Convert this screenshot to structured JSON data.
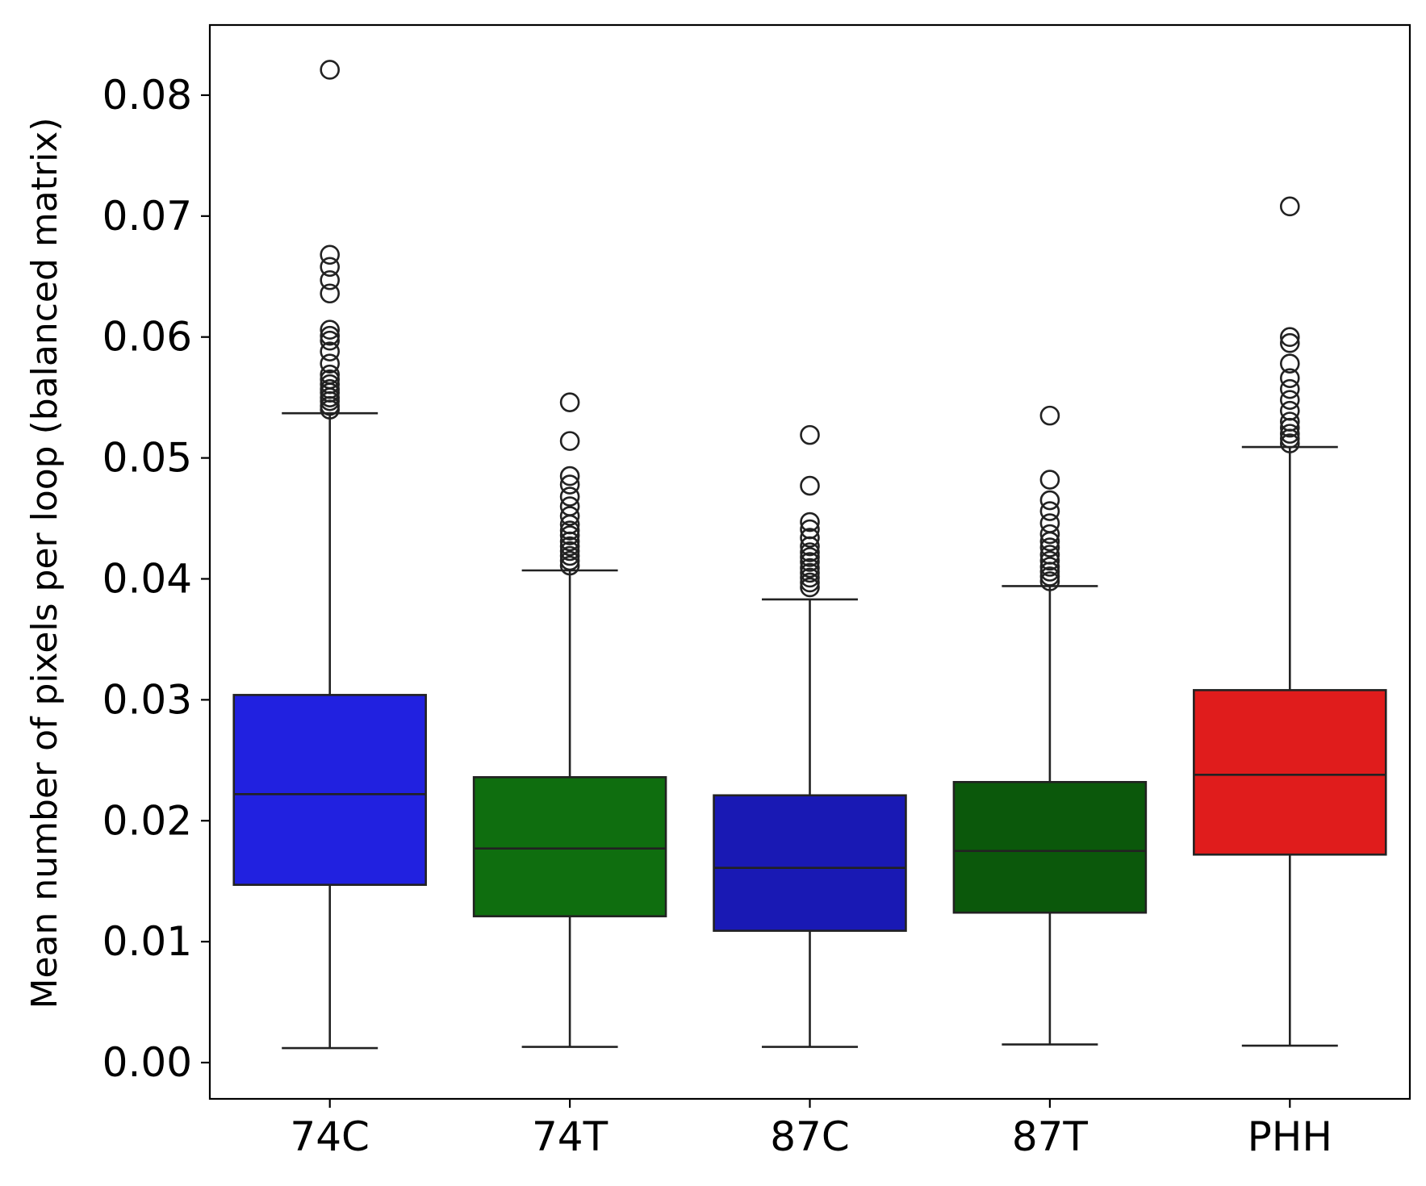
{
  "chart_data": {
    "type": "box",
    "title": "",
    "xlabel": "",
    "ylabel": "Mean number of pixels per loop (balanced matrix)",
    "ylim": [
      -0.003,
      0.0858
    ],
    "yticks": [
      "0.00",
      "0.01",
      "0.02",
      "0.03",
      "0.04",
      "0.05",
      "0.06",
      "0.07",
      "0.08"
    ],
    "ytick_values": [
      0.0,
      0.01,
      0.02,
      0.03,
      0.04,
      0.05,
      0.06,
      0.07,
      0.08
    ],
    "grid": false,
    "categories": [
      "74C",
      "74T",
      "87C",
      "87T",
      "PHH"
    ],
    "boxes": [
      {
        "category": "74C",
        "color": "#2121e0",
        "whisker_low": 0.0012,
        "q1": 0.0147,
        "median": 0.0222,
        "q3": 0.0304,
        "whisker_high": 0.0537,
        "outliers": [
          0.054,
          0.0543,
          0.0547,
          0.055,
          0.0554,
          0.0557,
          0.0561,
          0.0565,
          0.0569,
          0.0578,
          0.0588,
          0.0597,
          0.0601,
          0.0606,
          0.0636,
          0.0647,
          0.0658,
          0.0668,
          0.0821
        ]
      },
      {
        "category": "74T",
        "color": "#0f6e0f",
        "whisker_low": 0.0013,
        "q1": 0.0121,
        "median": 0.0177,
        "q3": 0.0236,
        "whisker_high": 0.0407,
        "outliers": [
          0.0411,
          0.0415,
          0.0419,
          0.0423,
          0.0427,
          0.0431,
          0.0436,
          0.044,
          0.0445,
          0.0452,
          0.046,
          0.0468,
          0.0478,
          0.0485,
          0.0514,
          0.0546
        ]
      },
      {
        "category": "87C",
        "color": "#1919b4",
        "whisker_low": 0.0013,
        "q1": 0.0109,
        "median": 0.0161,
        "q3": 0.0221,
        "whisker_high": 0.0383,
        "outliers": [
          0.0393,
          0.0397,
          0.0401,
          0.0405,
          0.0409,
          0.0414,
          0.0418,
          0.0422,
          0.0427,
          0.0434,
          0.0441,
          0.0447,
          0.0477,
          0.0519
        ]
      },
      {
        "category": "87T",
        "color": "#0b580b",
        "whisker_low": 0.0015,
        "q1": 0.0124,
        "median": 0.0175,
        "q3": 0.0232,
        "whisker_high": 0.0394,
        "outliers": [
          0.0398,
          0.0402,
          0.0406,
          0.041,
          0.0415,
          0.042,
          0.0426,
          0.0431,
          0.0437,
          0.0446,
          0.0456,
          0.0465,
          0.0482,
          0.0535
        ]
      },
      {
        "category": "PHH",
        "color": "#e01c1c",
        "whisker_low": 0.0014,
        "q1": 0.0172,
        "median": 0.0238,
        "q3": 0.0308,
        "whisker_high": 0.0509,
        "outliers": [
          0.0512,
          0.0516,
          0.052,
          0.0525,
          0.053,
          0.0539,
          0.0548,
          0.0557,
          0.0566,
          0.0578,
          0.0595,
          0.06,
          0.0708
        ]
      }
    ]
  }
}
